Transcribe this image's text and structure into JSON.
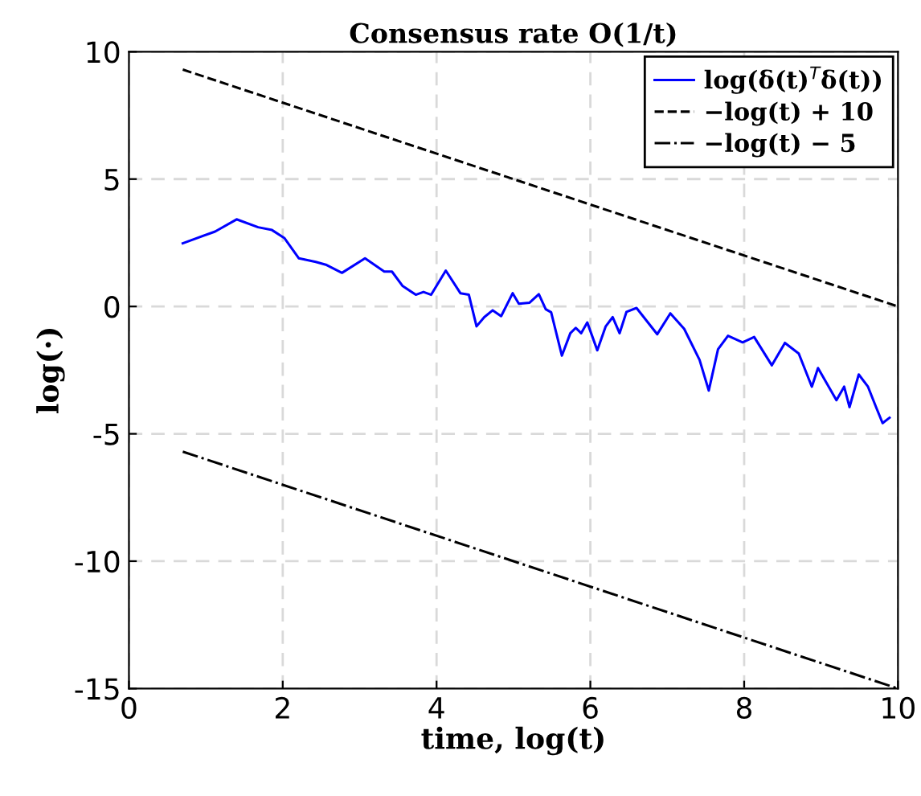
{
  "chart_data": {
    "type": "line",
    "title": "Consensus rate O(1/t)",
    "xlabel": "time, log(t)",
    "ylabel": "log(·)",
    "xlim": [
      0,
      10
    ],
    "ylim": [
      -15,
      10
    ],
    "xticks": [
      0,
      2,
      4,
      6,
      8,
      10
    ],
    "yticks": [
      -15,
      -10,
      -5,
      0,
      5,
      10
    ],
    "grid": true,
    "legend": "top right",
    "marker": "none",
    "series": [
      {
        "name": "log(δ(t)$^{T}$δ(t))",
        "color": "#0000ff",
        "line_style": "solid",
        "x": [
          0.7,
          1.12,
          1.4,
          1.68,
          1.86,
          2.02,
          2.21,
          2.43,
          2.56,
          2.77,
          3.07,
          3.32,
          3.42,
          3.56,
          3.73,
          3.83,
          3.93,
          4.12,
          4.31,
          4.42,
          4.52,
          4.62,
          4.73,
          4.84,
          4.99,
          5.07,
          5.21,
          5.33,
          5.42,
          5.49,
          5.63,
          5.74,
          5.81,
          5.88,
          5.96,
          6.09,
          6.2,
          6.29,
          6.38,
          6.47,
          6.6,
          6.87,
          7.04,
          7.22,
          7.42,
          7.54,
          7.66,
          7.79,
          7.98,
          8.13,
          8.36,
          8.53,
          8.71,
          8.88,
          8.96,
          9.2,
          9.3,
          9.37,
          9.49,
          9.61,
          9.72,
          9.8,
          9.89
        ],
        "values": [
          2.48,
          2.94,
          3.42,
          3.11,
          3.0,
          2.69,
          1.89,
          1.75,
          1.64,
          1.32,
          1.89,
          1.37,
          1.37,
          0.8,
          0.46,
          0.57,
          0.46,
          1.41,
          0.52,
          0.46,
          -0.78,
          -0.42,
          -0.15,
          -0.38,
          0.52,
          0.11,
          0.15,
          0.48,
          -0.11,
          -0.23,
          -1.93,
          -1.05,
          -0.84,
          -1.05,
          -0.63,
          -1.72,
          -0.78,
          -0.42,
          -1.05,
          -0.21,
          -0.06,
          -1.09,
          -0.27,
          -0.88,
          -2.1,
          -3.3,
          -1.68,
          -1.15,
          -1.41,
          -1.2,
          -2.31,
          -1.43,
          -1.85,
          -3.15,
          -2.42,
          -3.68,
          -3.15,
          -3.95,
          -2.67,
          -3.15,
          -3.99,
          -4.58,
          -4.37
        ]
      },
      {
        "name": "−log(t) + 10",
        "color": "#000000",
        "line_style": "dashed",
        "x": [
          0.7,
          10
        ],
        "values": [
          9.3,
          0
        ]
      },
      {
        "name": "−log(t) − 5",
        "color": "#000000",
        "line_style": "dashdot",
        "x": [
          0.7,
          10
        ],
        "values": [
          -5.7,
          -15
        ]
      }
    ]
  }
}
